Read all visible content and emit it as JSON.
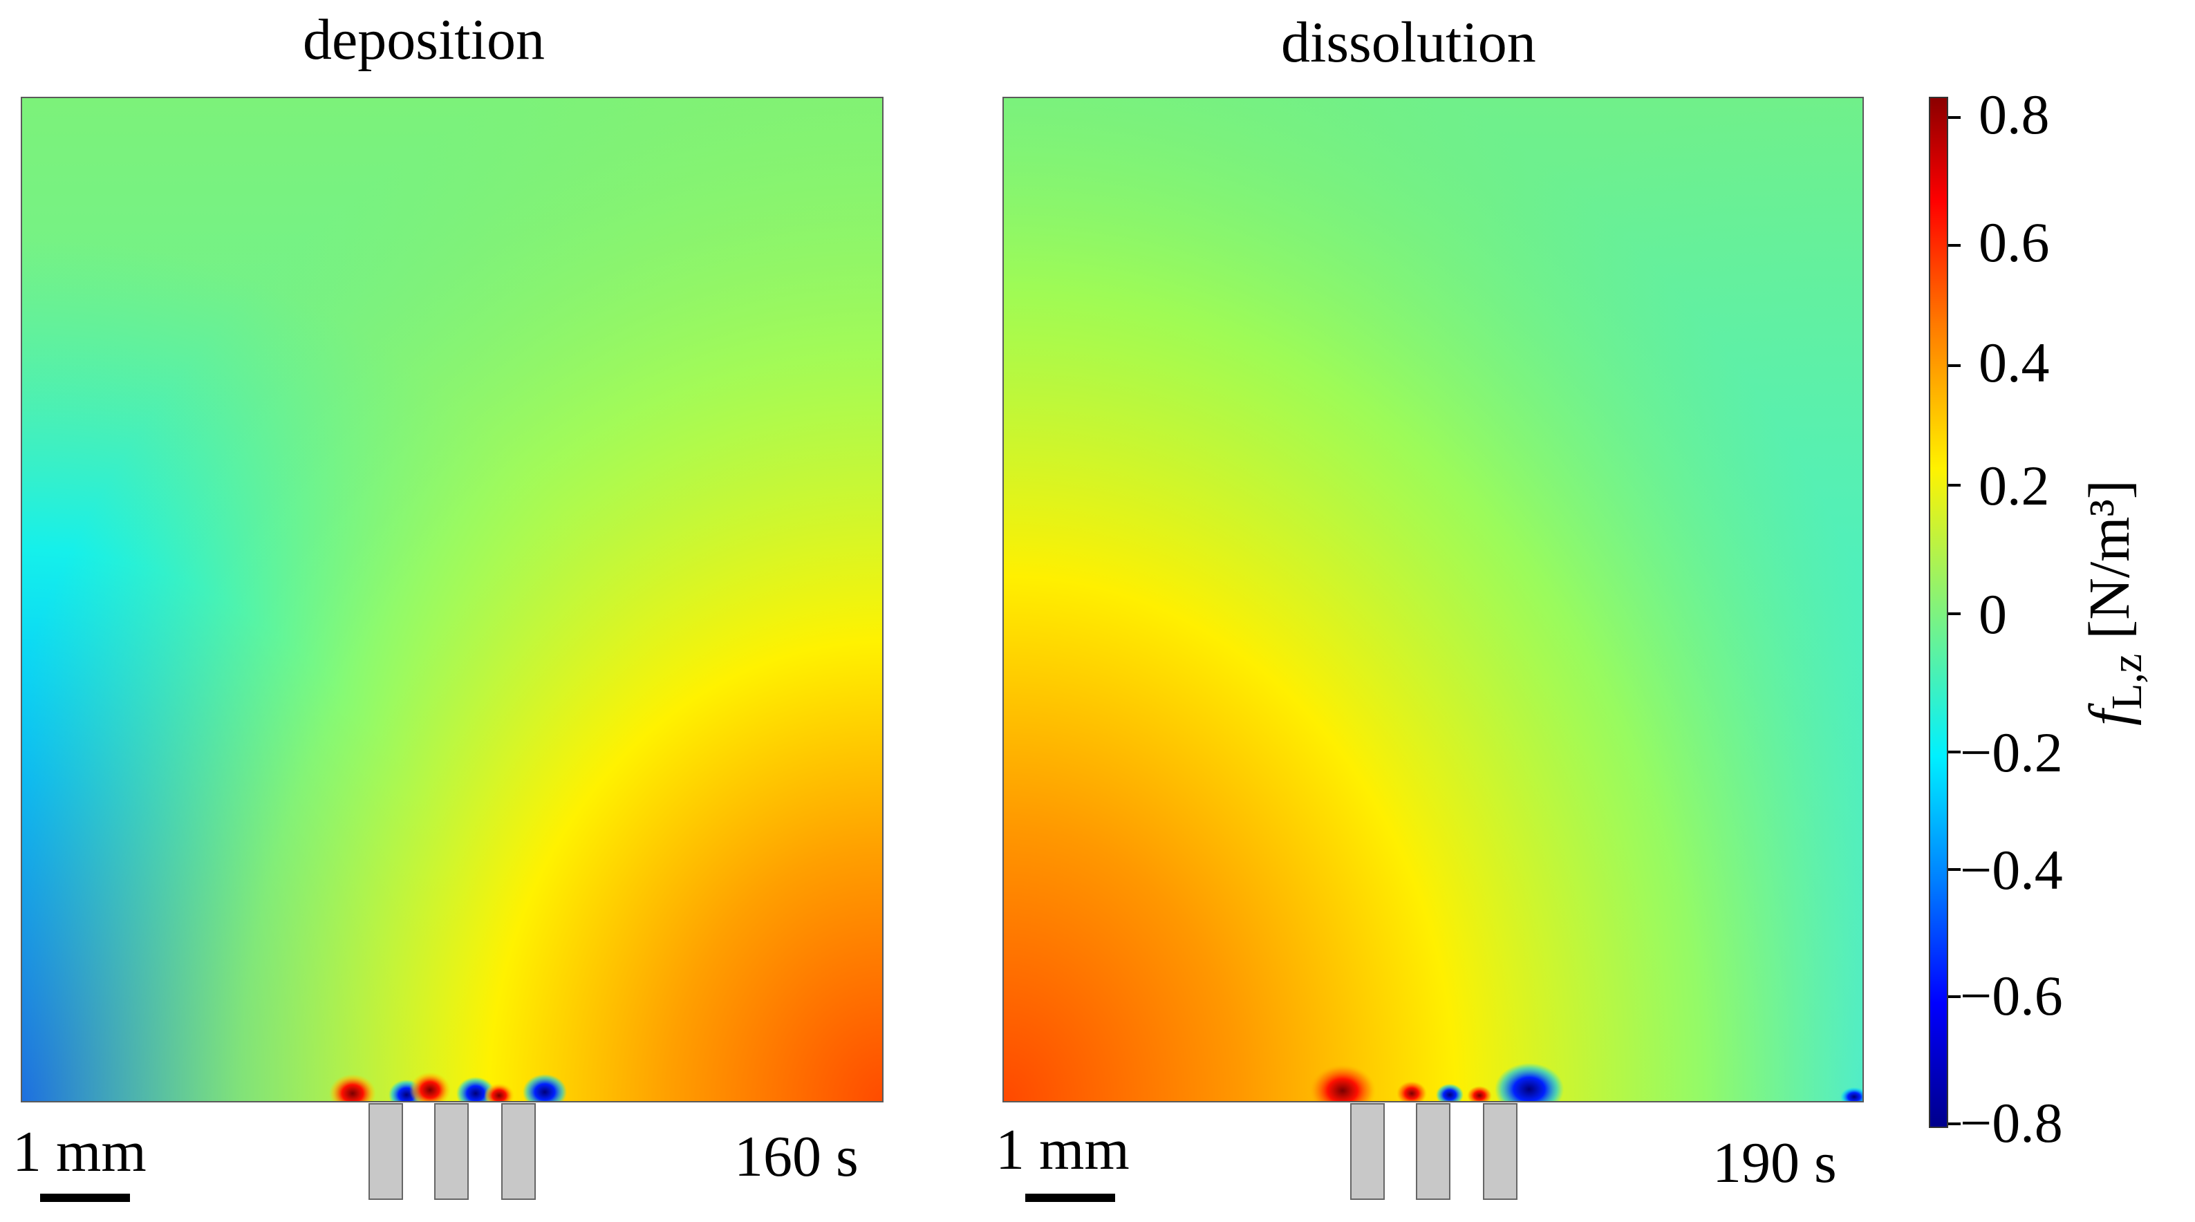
{
  "panels": [
    {
      "title": "deposition",
      "scale_label": "1 mm",
      "time_label": "160 s"
    },
    {
      "title": "dissolution",
      "scale_label": "1 mm",
      "time_label": "190 s"
    }
  ],
  "colorbar": {
    "ticks": [
      "0.8",
      "0.6",
      "0.4",
      "0.2",
      "0",
      "−0.2",
      "−0.4",
      "−0.6",
      "−0.8"
    ],
    "quantity": "f",
    "subscript": "L,z",
    "unit": "[N/m³]",
    "colormap": "jet"
  },
  "colors": {
    "field_base": "#79f27f",
    "blue": "#0050ff",
    "cyan": "#00f0ff",
    "yellow": "#fff200",
    "orange": "#ff5a00",
    "dark_red": "#8b0000",
    "dark_blue": "#00008b",
    "electrode": "#c8c8c8"
  }
}
